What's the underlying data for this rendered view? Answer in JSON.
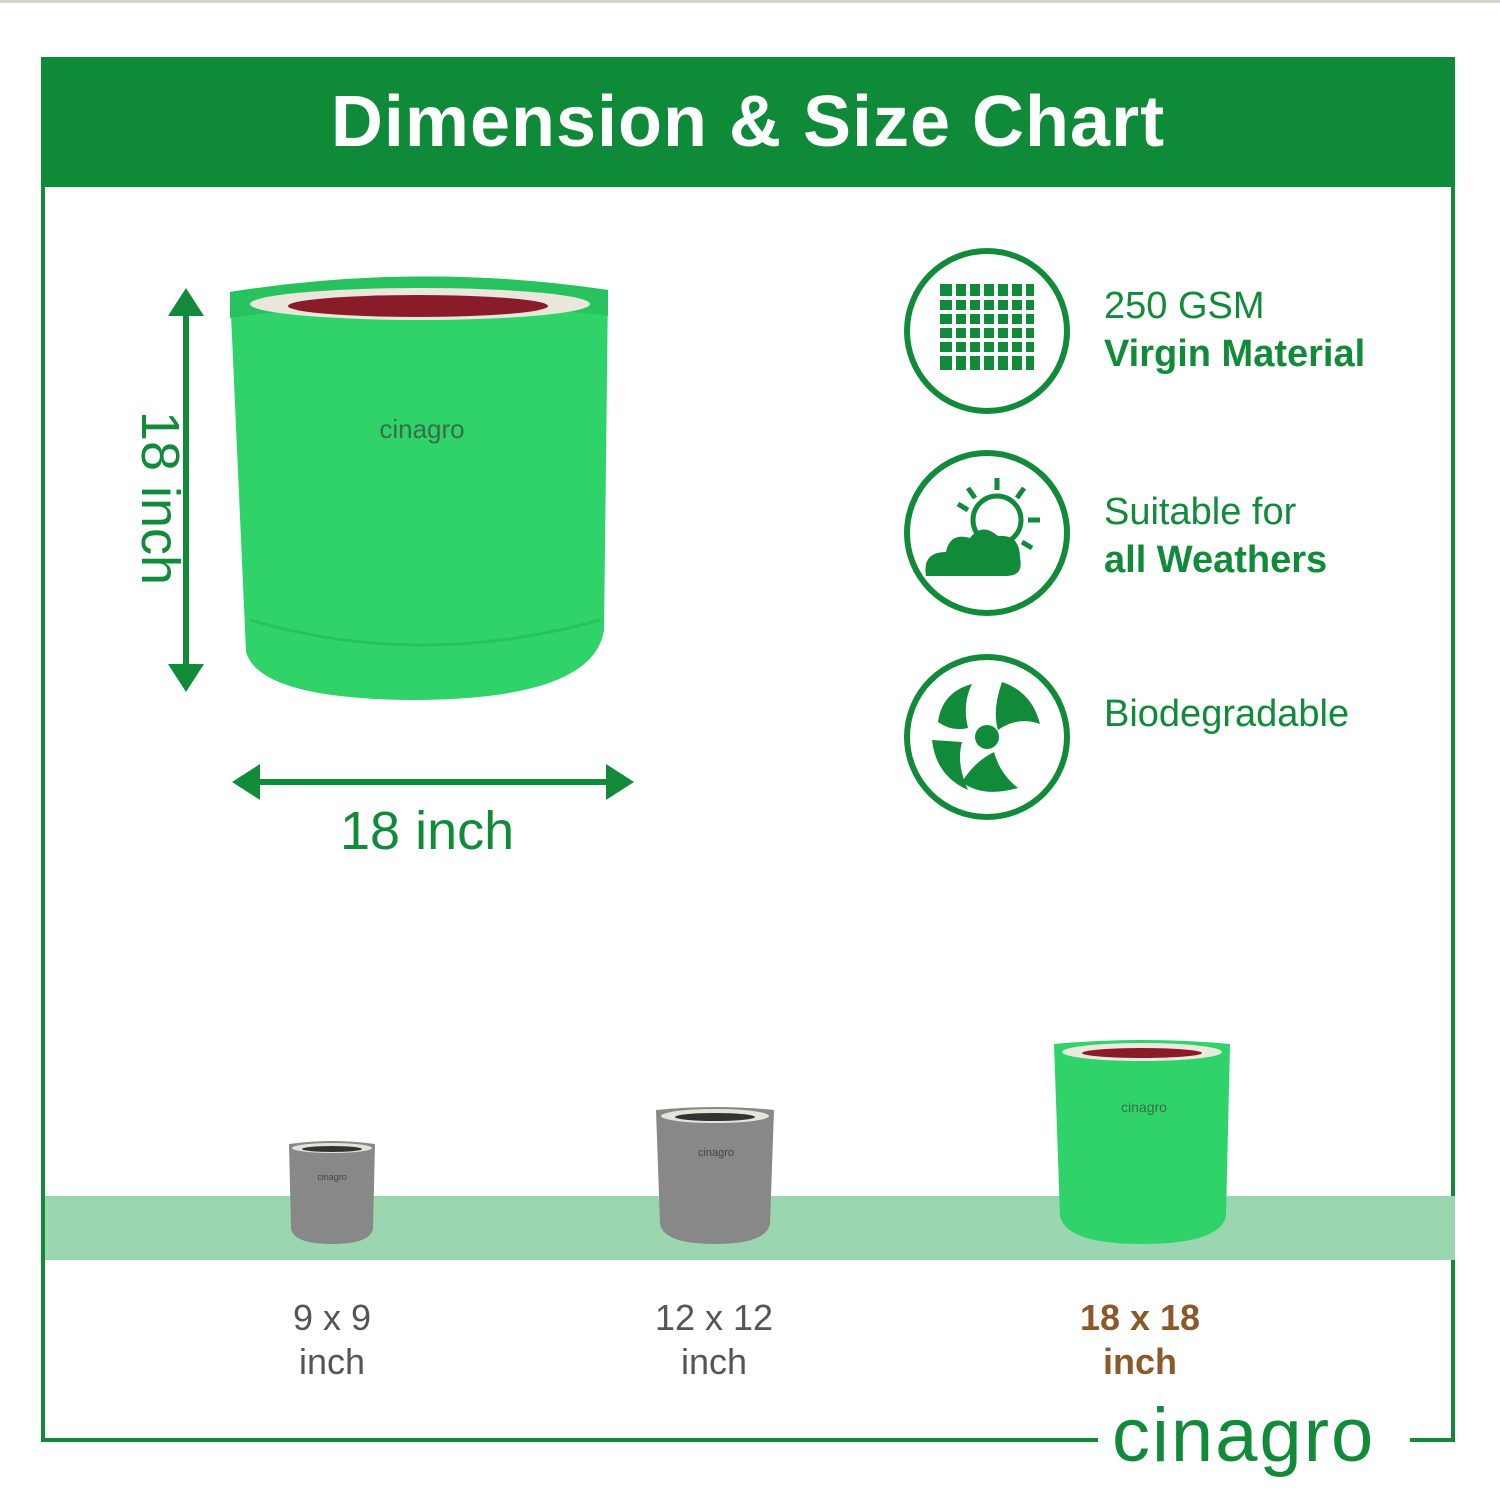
{
  "title": "Dimension & Size Chart",
  "dimension": {
    "height_label": "18 inch",
    "width_label": "18 inch"
  },
  "bag_brand": "cinagro",
  "features": [
    {
      "line1": "250 GSM",
      "line2": "Virgin Material",
      "icon": "fabric-mesh-icon"
    },
    {
      "line1": "Suitable for",
      "line2": "all Weathers",
      "icon": "sun-cloud-icon"
    },
    {
      "line1": "Biodegradable",
      "line2": "",
      "icon": "leaf-recycle-icon"
    }
  ],
  "sizes": [
    {
      "size": "9 x 9",
      "unit": "inch"
    },
    {
      "size": "12 x 12",
      "unit": "inch"
    },
    {
      "size": "18 x 18",
      "unit": "inch"
    }
  ],
  "brand": "cinagro",
  "colors": {
    "brand_green": "#118a3a",
    "bag_green": "#2fd36a",
    "bag_gray": "#8a8a8a",
    "highlight": "#8a5a2b",
    "ground": "#9ad6b0"
  }
}
